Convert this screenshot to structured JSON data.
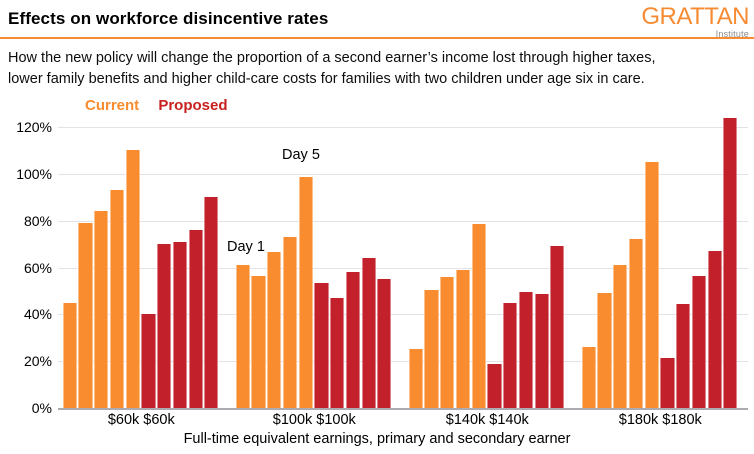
{
  "header": {
    "title": "Effects on workforce disincentive rates",
    "subtitle_line1": "How the new policy will change the proportion of a second earner’s income lost through higher taxes,",
    "subtitle_line2": "lower family benefits and higher child-care costs for families with two children under age six in care.",
    "logo_main": "GRATTAN",
    "logo_sub": "Institute",
    "accent_color": "#F68B33"
  },
  "legend": {
    "items": [
      {
        "label": "Current",
        "color": "#F98C2F"
      },
      {
        "label": "Proposed",
        "color": "#C8201F"
      }
    ]
  },
  "chart_data": {
    "type": "bar",
    "title": "Effects on workforce disincentive rates",
    "categories": [
      "$60k $60k",
      "$100k $100k",
      "$140k $140k",
      "$180k $180k"
    ],
    "series": [
      {
        "name": "Current",
        "color": "#F98C2F",
        "values": [
          [
            45,
            79,
            84,
            93,
            110
          ],
          [
            61,
            56.5,
            66.5,
            73,
            98.5
          ],
          [
            25,
            50.5,
            56,
            59,
            78.5
          ],
          [
            26,
            49,
            61,
            72,
            105
          ]
        ]
      },
      {
        "name": "Proposed",
        "color": "#C2202A",
        "values": [
          [
            40,
            70,
            71,
            76,
            90
          ],
          [
            53.5,
            47,
            58,
            64,
            55
          ],
          [
            19,
            45,
            49.5,
            48.5,
            69
          ],
          [
            21.5,
            44.5,
            56.5,
            67,
            124
          ]
        ]
      }
    ],
    "yticks": [
      "0%",
      "20%",
      "40%",
      "60%",
      "80%",
      "100%",
      "120%"
    ],
    "ylim": [
      0,
      120
    ],
    "grid": "horizontal",
    "legend_position": "top-left",
    "xlabel": "Full-time equivalent earnings, primary and secondary earner",
    "ylabel": "",
    "annotations": [
      {
        "text": "Day 1"
      },
      {
        "text": "Day 5"
      }
    ]
  }
}
